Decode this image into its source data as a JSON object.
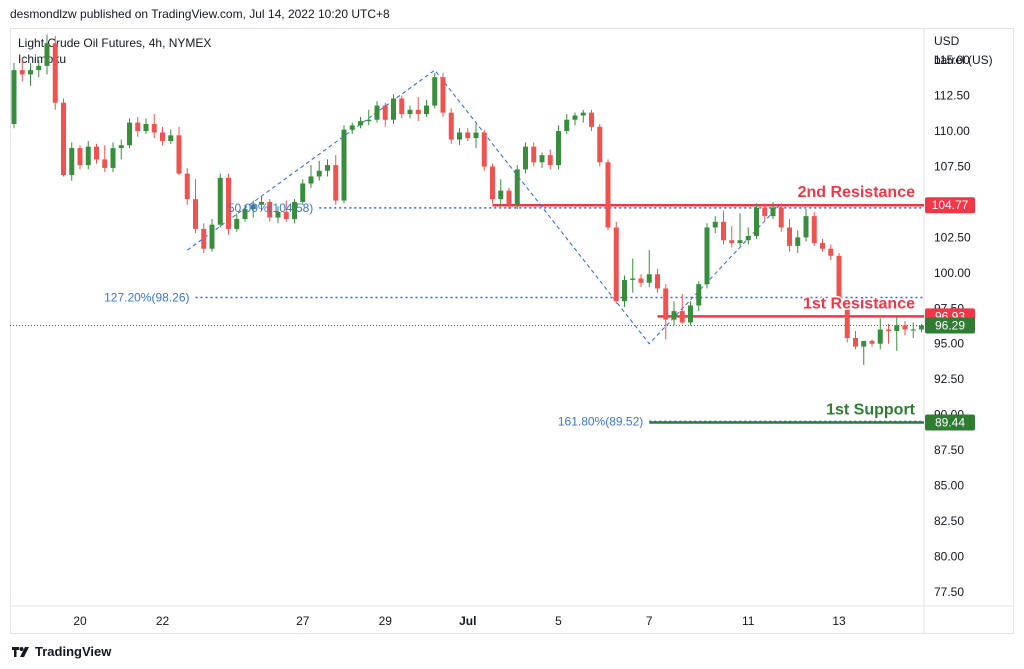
{
  "header": {
    "published": "desmondlzw published on TradingView.com, Jul 14, 2022 10:20 UTC+8"
  },
  "symbol": {
    "title": "Light Crude Oil Futures, 4h, NYMEX",
    "indicator": "Ichimoku"
  },
  "footer": {
    "brand": "TradingView",
    "logo_icon": "tradingview-logo-icon"
  },
  "chart_data": {
    "type": "candlestick",
    "currency": "USD",
    "unit": "barrel (US)",
    "ylim": [
      76.5,
      117.2
    ],
    "y_ticks": [
      {
        "value": 115,
        "label": "115.00"
      },
      {
        "value": 112.5,
        "label": "112.50"
      },
      {
        "value": 110,
        "label": "110.00"
      },
      {
        "value": 107.5,
        "label": "107.50"
      },
      {
        "value": 105,
        "label": "105.00"
      },
      {
        "value": 102.5,
        "label": "102.50"
      },
      {
        "value": 100,
        "label": "100.00"
      },
      {
        "value": 97.5,
        "label": "97.50"
      },
      {
        "value": 95,
        "label": "95.00"
      },
      {
        "value": 92.5,
        "label": "92.50"
      },
      {
        "value": 90,
        "label": "90.00"
      },
      {
        "value": 87.5,
        "label": "87.50"
      },
      {
        "value": 85,
        "label": "85.00"
      },
      {
        "value": 82.5,
        "label": "82.50"
      },
      {
        "value": 80,
        "label": "80.00"
      },
      {
        "value": 77.5,
        "label": "77.50"
      }
    ],
    "x_ticks": [
      {
        "index": 8,
        "label": "20",
        "bold": false
      },
      {
        "index": 18,
        "label": "22",
        "bold": false
      },
      {
        "index": 35,
        "label": "27",
        "bold": false
      },
      {
        "index": 45,
        "label": "29",
        "bold": false
      },
      {
        "index": 55,
        "label": "Jul",
        "bold": true
      },
      {
        "index": 66,
        "label": "5",
        "bold": false
      },
      {
        "index": 77,
        "label": "7",
        "bold": false
      },
      {
        "index": 89,
        "label": "11",
        "bold": false
      },
      {
        "index": 100,
        "label": "13",
        "bold": false
      }
    ],
    "candles": [
      {
        "o": 110.5,
        "h": 114.8,
        "l": 110.2,
        "c": 114.3
      },
      {
        "o": 114.3,
        "h": 115.2,
        "l": 113.5,
        "c": 114.0
      },
      {
        "o": 114.0,
        "h": 114.8,
        "l": 113.2,
        "c": 114.3
      },
      {
        "o": 114.3,
        "h": 115.0,
        "l": 113.8,
        "c": 114.6
      },
      {
        "o": 114.6,
        "h": 116.8,
        "l": 114.0,
        "c": 116.2
      },
      {
        "o": 116.2,
        "h": 116.7,
        "l": 111.5,
        "c": 112.0
      },
      {
        "o": 112.0,
        "h": 112.3,
        "l": 106.8,
        "c": 106.9
      },
      {
        "o": 106.9,
        "h": 109.2,
        "l": 106.5,
        "c": 108.8
      },
      {
        "o": 108.8,
        "h": 109.0,
        "l": 107.3,
        "c": 107.6
      },
      {
        "o": 107.6,
        "h": 109.3,
        "l": 107.3,
        "c": 108.9
      },
      {
        "o": 108.9,
        "h": 109.1,
        "l": 107.7,
        "c": 108.0
      },
      {
        "o": 108.0,
        "h": 109.0,
        "l": 107.1,
        "c": 107.4
      },
      {
        "o": 107.4,
        "h": 109.2,
        "l": 107.1,
        "c": 108.8
      },
      {
        "o": 108.8,
        "h": 109.4,
        "l": 108.0,
        "c": 109.0
      },
      {
        "o": 109.0,
        "h": 110.9,
        "l": 108.8,
        "c": 110.6
      },
      {
        "o": 110.6,
        "h": 111.0,
        "l": 109.6,
        "c": 110.0
      },
      {
        "o": 110.0,
        "h": 110.9,
        "l": 109.8,
        "c": 110.5
      },
      {
        "o": 110.5,
        "h": 111.2,
        "l": 109.5,
        "c": 109.9
      },
      {
        "o": 109.9,
        "h": 110.3,
        "l": 109.0,
        "c": 109.3
      },
      {
        "o": 109.3,
        "h": 110.1,
        "l": 109.1,
        "c": 109.7
      },
      {
        "o": 109.7,
        "h": 110.3,
        "l": 106.9,
        "c": 107.0
      },
      {
        "o": 107.0,
        "h": 107.4,
        "l": 104.8,
        "c": 105.2
      },
      {
        "o": 105.2,
        "h": 106.6,
        "l": 102.8,
        "c": 103.1
      },
      {
        "o": 103.1,
        "h": 103.5,
        "l": 101.4,
        "c": 101.7
      },
      {
        "o": 101.7,
        "h": 103.8,
        "l": 101.5,
        "c": 103.4
      },
      {
        "o": 103.4,
        "h": 107.0,
        "l": 103.2,
        "c": 106.7
      },
      {
        "o": 106.7,
        "h": 107.0,
        "l": 102.7,
        "c": 103.1
      },
      {
        "o": 103.1,
        "h": 104.2,
        "l": 102.9,
        "c": 103.8
      },
      {
        "o": 103.8,
        "h": 104.8,
        "l": 103.6,
        "c": 104.5
      },
      {
        "o": 104.5,
        "h": 105.1,
        "l": 103.9,
        "c": 104.8
      },
      {
        "o": 104.8,
        "h": 105.4,
        "l": 104.4,
        "c": 105.0
      },
      {
        "o": 105.0,
        "h": 105.2,
        "l": 103.6,
        "c": 103.9
      },
      {
        "o": 103.9,
        "h": 104.7,
        "l": 103.5,
        "c": 104.3
      },
      {
        "o": 104.3,
        "h": 105.1,
        "l": 103.6,
        "c": 103.8
      },
      {
        "o": 103.8,
        "h": 105.2,
        "l": 103.5,
        "c": 105.0
      },
      {
        "o": 105.0,
        "h": 106.6,
        "l": 104.8,
        "c": 106.3
      },
      {
        "o": 106.3,
        "h": 107.6,
        "l": 106.0,
        "c": 106.8
      },
      {
        "o": 106.8,
        "h": 107.9,
        "l": 106.5,
        "c": 107.2
      },
      {
        "o": 107.2,
        "h": 108.0,
        "l": 106.8,
        "c": 107.6
      },
      {
        "o": 107.6,
        "h": 108.3,
        "l": 104.8,
        "c": 105.1
      },
      {
        "o": 105.1,
        "h": 110.4,
        "l": 104.9,
        "c": 110.1
      },
      {
        "o": 110.1,
        "h": 110.6,
        "l": 109.8,
        "c": 110.4
      },
      {
        "o": 110.4,
        "h": 111.0,
        "l": 110.2,
        "c": 110.7
      },
      {
        "o": 110.7,
        "h": 111.5,
        "l": 110.4,
        "c": 110.8
      },
      {
        "o": 110.8,
        "h": 112.1,
        "l": 110.6,
        "c": 111.8
      },
      {
        "o": 111.8,
        "h": 112.0,
        "l": 110.3,
        "c": 110.8
      },
      {
        "o": 110.8,
        "h": 112.6,
        "l": 110.5,
        "c": 112.3
      },
      {
        "o": 112.3,
        "h": 112.5,
        "l": 110.9,
        "c": 111.2
      },
      {
        "o": 111.2,
        "h": 111.8,
        "l": 110.9,
        "c": 111.5
      },
      {
        "o": 111.5,
        "h": 112.4,
        "l": 110.7,
        "c": 111.2
      },
      {
        "o": 111.2,
        "h": 112.2,
        "l": 111.0,
        "c": 111.8
      },
      {
        "o": 111.8,
        "h": 114.1,
        "l": 111.6,
        "c": 113.8
      },
      {
        "o": 113.8,
        "h": 114.1,
        "l": 111.0,
        "c": 111.3
      },
      {
        "o": 111.3,
        "h": 111.6,
        "l": 109.1,
        "c": 109.4
      },
      {
        "o": 109.4,
        "h": 110.2,
        "l": 109.0,
        "c": 109.9
      },
      {
        "o": 109.9,
        "h": 110.2,
        "l": 109.3,
        "c": 109.5
      },
      {
        "o": 109.5,
        "h": 110.5,
        "l": 108.8,
        "c": 109.9
      },
      {
        "o": 109.9,
        "h": 110.1,
        "l": 107.2,
        "c": 107.5
      },
      {
        "o": 107.5,
        "h": 107.7,
        "l": 104.9,
        "c": 105.2
      },
      {
        "o": 105.2,
        "h": 106.6,
        "l": 104.7,
        "c": 105.8
      },
      {
        "o": 105.8,
        "h": 106.0,
        "l": 104.5,
        "c": 104.8
      },
      {
        "o": 104.8,
        "h": 107.6,
        "l": 104.5,
        "c": 107.3
      },
      {
        "o": 107.3,
        "h": 109.2,
        "l": 107.0,
        "c": 108.9
      },
      {
        "o": 108.9,
        "h": 109.2,
        "l": 107.5,
        "c": 107.8
      },
      {
        "o": 107.8,
        "h": 108.5,
        "l": 107.4,
        "c": 108.3
      },
      {
        "o": 108.3,
        "h": 108.7,
        "l": 107.3,
        "c": 107.6
      },
      {
        "o": 107.6,
        "h": 110.4,
        "l": 107.3,
        "c": 110.0
      },
      {
        "o": 110.0,
        "h": 111.2,
        "l": 109.8,
        "c": 110.8
      },
      {
        "o": 110.8,
        "h": 111.3,
        "l": 110.4,
        "c": 111.1
      },
      {
        "o": 111.1,
        "h": 111.5,
        "l": 110.6,
        "c": 111.3
      },
      {
        "o": 111.3,
        "h": 111.5,
        "l": 110.0,
        "c": 110.3
      },
      {
        "o": 110.3,
        "h": 110.5,
        "l": 107.5,
        "c": 107.8
      },
      {
        "o": 107.8,
        "h": 108.0,
        "l": 103.0,
        "c": 103.2
      },
      {
        "o": 103.2,
        "h": 103.6,
        "l": 97.8,
        "c": 98.0
      },
      {
        "o": 98.0,
        "h": 99.8,
        "l": 97.6,
        "c": 99.5
      },
      {
        "o": 99.5,
        "h": 101.0,
        "l": 98.6,
        "c": 99.6
      },
      {
        "o": 99.6,
        "h": 99.9,
        "l": 99.0,
        "c": 99.3
      },
      {
        "o": 99.3,
        "h": 101.6,
        "l": 99.0,
        "c": 99.9
      },
      {
        "o": 99.9,
        "h": 100.3,
        "l": 98.6,
        "c": 98.9
      },
      {
        "o": 98.9,
        "h": 99.2,
        "l": 95.3,
        "c": 96.7
      },
      {
        "o": 96.7,
        "h": 98.0,
        "l": 96.3,
        "c": 97.3
      },
      {
        "o": 97.3,
        "h": 98.5,
        "l": 96.4,
        "c": 96.5
      },
      {
        "o": 96.5,
        "h": 98.0,
        "l": 96.3,
        "c": 97.7
      },
      {
        "o": 97.7,
        "h": 99.4,
        "l": 97.3,
        "c": 99.2
      },
      {
        "o": 99.2,
        "h": 103.5,
        "l": 98.9,
        "c": 103.2
      },
      {
        "o": 103.2,
        "h": 104.0,
        "l": 102.8,
        "c": 103.6
      },
      {
        "o": 103.6,
        "h": 104.4,
        "l": 102.0,
        "c": 102.3
      },
      {
        "o": 102.3,
        "h": 103.3,
        "l": 101.8,
        "c": 102.1
      },
      {
        "o": 102.1,
        "h": 104.2,
        "l": 101.9,
        "c": 102.3
      },
      {
        "o": 102.3,
        "h": 103.2,
        "l": 102.0,
        "c": 102.6
      },
      {
        "o": 102.6,
        "h": 104.9,
        "l": 102.4,
        "c": 104.6
      },
      {
        "o": 104.6,
        "h": 104.9,
        "l": 103.7,
        "c": 104.0
      },
      {
        "o": 104.0,
        "h": 105.0,
        "l": 103.8,
        "c": 104.6
      },
      {
        "o": 104.6,
        "h": 104.9,
        "l": 102.9,
        "c": 103.2
      },
      {
        "o": 103.2,
        "h": 103.8,
        "l": 101.5,
        "c": 101.9
      },
      {
        "o": 101.9,
        "h": 103.0,
        "l": 101.4,
        "c": 102.5
      },
      {
        "o": 102.5,
        "h": 104.5,
        "l": 102.2,
        "c": 104.0
      },
      {
        "o": 104.0,
        "h": 104.3,
        "l": 101.9,
        "c": 102.1
      },
      {
        "o": 102.1,
        "h": 102.4,
        "l": 101.5,
        "c": 101.7
      },
      {
        "o": 101.7,
        "h": 102.0,
        "l": 100.9,
        "c": 101.2
      },
      {
        "o": 101.2,
        "h": 101.4,
        "l": 97.4,
        "c": 97.7
      },
      {
        "o": 97.7,
        "h": 97.9,
        "l": 95.1,
        "c": 95.4
      },
      {
        "o": 95.4,
        "h": 95.9,
        "l": 94.6,
        "c": 94.8
      },
      {
        "o": 94.8,
        "h": 95.1,
        "l": 93.5,
        "c": 95.2
      },
      {
        "o": 95.2,
        "h": 95.3,
        "l": 94.8,
        "c": 95.0
      },
      {
        "o": 95.0,
        "h": 96.8,
        "l": 94.6,
        "c": 96.0
      },
      {
        "o": 96.0,
        "h": 96.4,
        "l": 95.0,
        "c": 95.9
      },
      {
        "o": 95.9,
        "h": 96.9,
        "l": 94.5,
        "c": 96.3
      },
      {
        "o": 96.3,
        "h": 96.6,
        "l": 95.6,
        "c": 96.0
      },
      {
        "o": 96.0,
        "h": 96.5,
        "l": 95.4,
        "c": 96.0
      },
      {
        "o": 96.0,
        "h": 96.4,
        "l": 95.8,
        "c": 96.29
      }
    ],
    "levels": [
      {
        "name": "2nd Resistance",
        "value": 104.77,
        "badge": "104.77",
        "from_index": 58,
        "label_color": "#f23645",
        "badge_color": "#f23645"
      },
      {
        "name": "1st Resistance",
        "value": 96.93,
        "badge": "96.93",
        "from_index": 78,
        "label_color": "#f23645",
        "badge_color": "#f23645"
      },
      {
        "name": "1st Support",
        "value": 89.44,
        "badge": "89.44",
        "from_index": 77,
        "label_color": "#2e7d32",
        "badge_color": "#2e7d32"
      }
    ],
    "fib_levels": [
      {
        "label": "50.00%(104.58)",
        "value": 104.58,
        "from_index": 37
      },
      {
        "label": "127.20%(98.26)",
        "value": 98.26,
        "from_index": 22
      },
      {
        "label": "161.80%(89.52)",
        "value": 89.52,
        "from_index": 77
      }
    ],
    "trend_lines": [
      [
        {
          "i": 21,
          "v": 101.6
        },
        {
          "i": 51,
          "v": 114.3
        },
        {
          "i": 77,
          "v": 95.0
        },
        {
          "i": 93,
          "v": 104.9
        }
      ]
    ],
    "last_price": {
      "value": 96.29,
      "badge": "96.29",
      "color": "#2e7d32"
    },
    "colors": {
      "up": "#388e3c",
      "down": "#ef5350",
      "fib": "#2962ff",
      "grid": "#e0e3eb"
    }
  }
}
